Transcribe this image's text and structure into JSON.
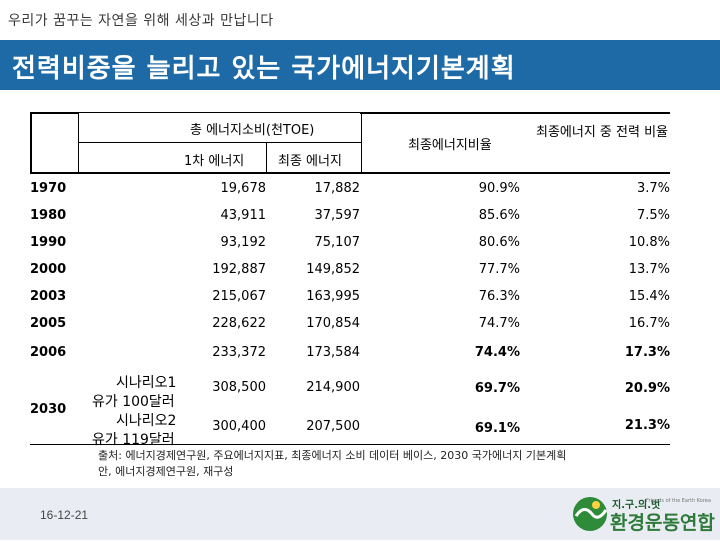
{
  "header": {
    "slogan": "우리가 꿈꾸는 자연을 위해 세상과 만납니다",
    "title": "전력비중을 늘리고 있는 국가에너지기본계획"
  },
  "table": {
    "h_total": "총 에너지소비(천TOE)",
    "h_primary": "1차 에너지",
    "h_final": "최종 에너지",
    "h_ratio": "최종에너지비율",
    "h_elec": "최종에너지 중 전력 비율",
    "rows": [
      {
        "year": "1970",
        "primary": "19,678",
        "final": "17,882",
        "ratio": "90.9%",
        "elec": "3.7%"
      },
      {
        "year": "1980",
        "primary": "43,911",
        "final": "37,597",
        "ratio": "85.6%",
        "elec": "7.5%"
      },
      {
        "year": "1990",
        "primary": "93,192",
        "final": "75,107",
        "ratio": "80.6%",
        "elec": "10.8%"
      },
      {
        "year": "2000",
        "primary": "192,887",
        "final": "149,852",
        "ratio": "77.7%",
        "elec": "13.7%"
      },
      {
        "year": "2003",
        "primary": "215,067",
        "final": "163,995",
        "ratio": "76.3%",
        "elec": "15.4%"
      },
      {
        "year": "2005",
        "primary": "228,622",
        "final": "170,854",
        "ratio": "74.7%",
        "elec": "16.7%"
      },
      {
        "year": "2006",
        "primary": "233,372",
        "final": "173,584",
        "ratio": "74.4%",
        "elec": "17.3%"
      }
    ],
    "scen_year": "2030",
    "scenarios": [
      {
        "name": "시나리오1",
        "note": "유가 100달러",
        "primary": "308,500",
        "final": "214,900",
        "ratio": "69.7%",
        "elec": "20.9%"
      },
      {
        "name": "시나리오2",
        "note": "유가 119달러",
        "primary": "300,400",
        "final": "207,500",
        "ratio": "69.1%",
        "elec": "21.3%"
      }
    ]
  },
  "source": "출처: 에너지경제연구원, 주요에너지지표, 최종에너지 소비 데이터 베이스, 2030 국가에너지 기본계획 안, 에너지경제연구원, 재구성",
  "footer": {
    "date": "16-12-21",
    "logo_small": "지.구.의.벗",
    "logo_tiny": "Friends of the Earth Korea",
    "logo_main": "환경운동연합"
  }
}
